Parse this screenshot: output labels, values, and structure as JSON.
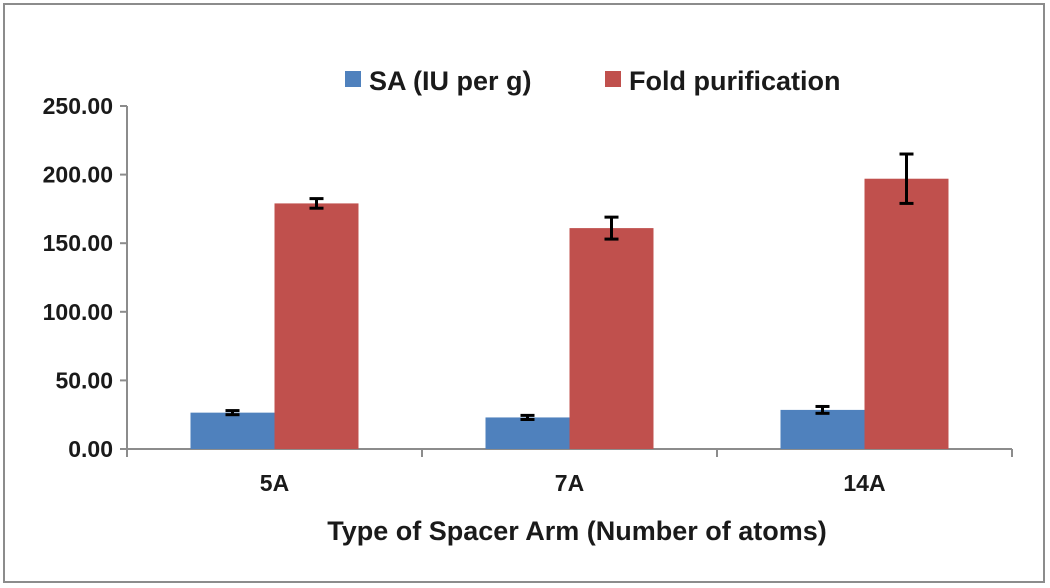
{
  "chart_data": {
    "type": "bar",
    "title": "",
    "xlabel": "Type of Spacer Arm  (Number of atoms)",
    "ylabel": "",
    "categories": [
      "5A",
      "7A",
      "14A"
    ],
    "ylim": [
      0,
      250
    ],
    "yticks": [
      0,
      50,
      100,
      150,
      200,
      250
    ],
    "ytick_labels": [
      "0.00",
      "50.00",
      "100.00",
      "150.00",
      "200.00",
      "250.00"
    ],
    "grid": false,
    "legend_position": "top",
    "series": [
      {
        "name": "SA (IU per g)",
        "color": "#4f81bd",
        "values": [
          26.5,
          23.0,
          28.5
        ],
        "error": [
          1.5,
          1.5,
          2.5
        ]
      },
      {
        "name": "Fold purification",
        "color": "#c0504d",
        "values": [
          179.0,
          161.0,
          197.0
        ],
        "error": [
          3.5,
          8.0,
          18.0
        ]
      }
    ]
  }
}
